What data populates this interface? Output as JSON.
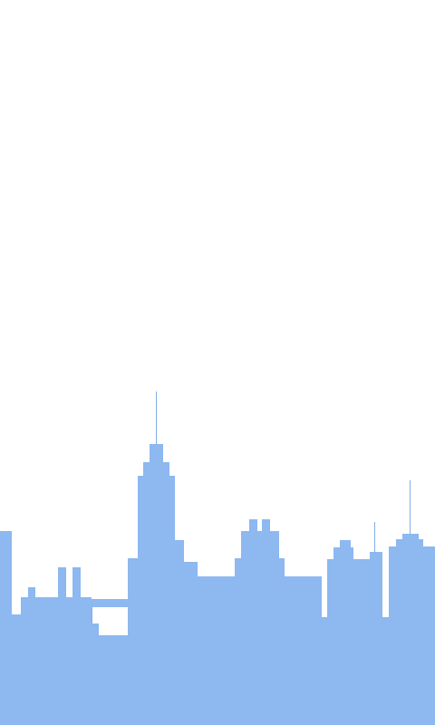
{
  "screen": {
    "background_color": "#ffffff"
  },
  "skyline": {
    "fill_color": "#8db8f0",
    "spire_color": "#7faee8",
    "icon": "city-skyline-illustration"
  }
}
